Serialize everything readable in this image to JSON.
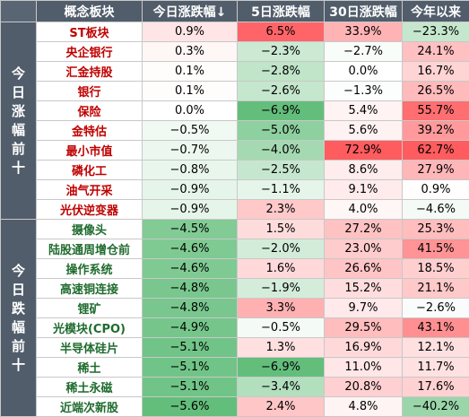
{
  "header": {
    "col_name": "概念板块",
    "col_today": "今日涨跌幅↓",
    "col_5d": "5日涨跌幅",
    "col_30d": "30日涨跌幅",
    "col_ytd": "今年以来"
  },
  "groups": [
    {
      "label_chars": [
        "今",
        "日",
        "涨",
        "幅",
        "前",
        "十"
      ],
      "rows": [
        {
          "name": "ST板块",
          "today": "0.9%",
          "d5": "6.5%",
          "d30": "33.9%",
          "ytd": "−23.3%"
        },
        {
          "name": "央企银行",
          "today": "0.3%",
          "d5": "−2.3%",
          "d30": "−2.7%",
          "ytd": "24.1%"
        },
        {
          "name": "汇金持股",
          "today": "0.1%",
          "d5": "−2.8%",
          "d30": "0.0%",
          "ytd": "16.7%"
        },
        {
          "name": "银行",
          "today": "0.1%",
          "d5": "−2.6%",
          "d30": "−1.3%",
          "ytd": "26.5%"
        },
        {
          "name": "保险",
          "today": "0.0%",
          "d5": "−6.9%",
          "d30": "5.4%",
          "ytd": "55.7%"
        },
        {
          "name": "金特估",
          "today": "−0.5%",
          "d5": "−5.0%",
          "d30": "5.6%",
          "ytd": "39.2%"
        },
        {
          "name": "最小市值",
          "today": "−0.7%",
          "d5": "−4.0%",
          "d30": "72.9%",
          "ytd": "62.7%"
        },
        {
          "name": "磷化工",
          "today": "−0.8%",
          "d5": "−2.5%",
          "d30": "8.6%",
          "ytd": "27.9%"
        },
        {
          "name": "油气开采",
          "today": "−0.9%",
          "d5": "−1.1%",
          "d30": "9.1%",
          "ytd": "0.9%"
        },
        {
          "name": "光伏逆变器",
          "today": "−0.9%",
          "d5": "2.3%",
          "d30": "4.0%",
          "ytd": "−4.6%"
        }
      ]
    },
    {
      "label_chars": [
        "今",
        "日",
        "跌",
        "幅",
        "前",
        "十"
      ],
      "rows": [
        {
          "name": "摄像头",
          "today": "−4.5%",
          "d5": "1.5%",
          "d30": "27.2%",
          "ytd": "25.3%"
        },
        {
          "name": "陆股通周增仓前",
          "today": "−4.6%",
          "d5": "−2.0%",
          "d30": "23.0%",
          "ytd": "41.5%"
        },
        {
          "name": "操作系统",
          "today": "−4.6%",
          "d5": "1.6%",
          "d30": "26.6%",
          "ytd": "18.5%"
        },
        {
          "name": "高速铜连接",
          "today": "−4.8%",
          "d5": "−1.9%",
          "d30": "15.2%",
          "ytd": "21.1%"
        },
        {
          "name": "锂矿",
          "today": "−4.8%",
          "d5": "3.3%",
          "d30": "9.7%",
          "ytd": "−2.6%"
        },
        {
          "name": "光模块(CPO)",
          "today": "−4.9%",
          "d5": "−0.5%",
          "d30": "29.5%",
          "ytd": "43.1%"
        },
        {
          "name": "半导体硅片",
          "today": "−5.1%",
          "d5": "1.3%",
          "d30": "16.9%",
          "ytd": "12.1%"
        },
        {
          "name": "稀土",
          "today": "−5.1%",
          "d5": "−6.9%",
          "d30": "11.0%",
          "ytd": "11.7%"
        },
        {
          "name": "稀土永磁",
          "today": "−5.1%",
          "d5": "−3.4%",
          "d30": "20.8%",
          "ytd": "17.6%"
        },
        {
          "name": "近端次新股",
          "today": "−5.6%",
          "d5": "2.4%",
          "d30": "4.8%",
          "ytd": "−40.2%"
        }
      ]
    }
  ],
  "colors": {
    "header_bg": "#525d6b",
    "up_text": "#c00000",
    "down_text": "#1f6b2e",
    "positive_strong": "#e8545a",
    "negative_strong": "#5cb85c"
  }
}
